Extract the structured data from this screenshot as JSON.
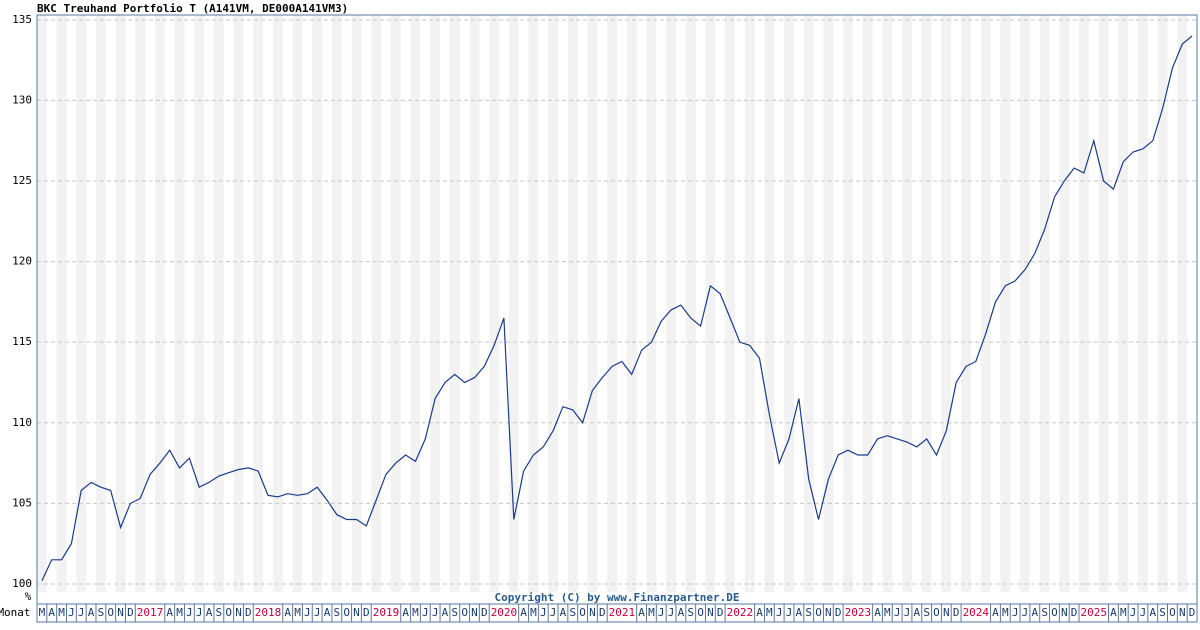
{
  "chart_data": {
    "type": "line",
    "title": "BKC Treuhand Portfolio T (A141VM, DE000A141VM3)",
    "copyright": "Copyright (C) by www.Finanzpartner.DE",
    "x_label": "Monat",
    "y_unit": "%",
    "categories": [
      "M",
      "A",
      "M",
      "J",
      "J",
      "A",
      "S",
      "O",
      "N",
      "D",
      "2017",
      null,
      null,
      "A",
      "M",
      "J",
      "J",
      "A",
      "S",
      "O",
      "N",
      "D",
      "2018",
      null,
      null,
      "A",
      "M",
      "J",
      "J",
      "A",
      "S",
      "O",
      "N",
      "D",
      "2019",
      null,
      null,
      "A",
      "M",
      "J",
      "J",
      "A",
      "S",
      "O",
      "N",
      "D",
      "2020",
      null,
      null,
      "A",
      "M",
      "J",
      "J",
      "A",
      "S",
      "O",
      "N",
      "D",
      "2021",
      null,
      null,
      "A",
      "M",
      "J",
      "J",
      "A",
      "S",
      "O",
      "N",
      "D",
      "2022",
      null,
      null,
      "A",
      "M",
      "J",
      "J",
      "A",
      "S",
      "O",
      "N",
      "D",
      "2023",
      null,
      null,
      "A",
      "M",
      "J",
      "J",
      "A",
      "S",
      "O",
      "N",
      "D",
      "2024",
      null,
      null,
      "A",
      "M",
      "J",
      "J",
      "A",
      "S",
      "O",
      "N",
      "D",
      "2025",
      null,
      null,
      "A",
      "M",
      "J",
      "J",
      "A",
      "S",
      "O",
      "N",
      "D"
    ],
    "series": [
      {
        "name": "BKC Treuhand Portfolio T",
        "color": "#1a3a8a",
        "values": [
          100.2,
          101.5,
          101.5,
          102.5,
          105.8,
          106.3,
          106.0,
          105.8,
          103.5,
          105.0,
          105.3,
          106.8,
          107.5,
          108.3,
          107.2,
          107.8,
          106.0,
          106.3,
          106.7,
          106.9,
          107.1,
          107.2,
          107.0,
          105.5,
          105.4,
          105.6,
          105.5,
          105.6,
          106.0,
          105.2,
          104.3,
          104.0,
          104.0,
          103.6,
          105.2,
          106.8,
          107.5,
          108.0,
          107.6,
          109.0,
          111.5,
          112.5,
          113.0,
          112.5,
          112.8,
          113.5,
          114.8,
          116.5,
          104.0,
          107.0,
          108.0,
          108.5,
          109.5,
          111.0,
          110.8,
          110.0,
          112.0,
          112.8,
          113.5,
          113.8,
          113.0,
          114.5,
          115.0,
          116.3,
          117.0,
          117.3,
          116.5,
          116.0,
          118.5,
          118.0,
          116.5,
          115.0,
          114.8,
          114.0,
          110.5,
          107.5,
          109.0,
          111.5,
          106.5,
          104.0,
          106.5,
          108.0,
          108.3,
          108.0,
          108.0,
          109.0,
          109.2,
          109.0,
          108.8,
          108.5,
          109.0,
          108.0,
          109.5,
          112.5,
          113.5,
          113.8,
          115.5,
          117.5,
          118.5,
          118.8,
          119.5,
          120.5,
          122.0,
          124.0,
          125.0,
          125.8,
          125.5,
          127.5,
          125.0,
          124.5,
          126.2,
          126.8,
          127.0,
          127.5,
          129.5,
          132.0,
          133.5,
          134.0
        ]
      }
    ],
    "ylim": [
      99.5,
      135.3
    ],
    "yticks": [
      100,
      105,
      110,
      115,
      120,
      125,
      130,
      135
    ],
    "grid": true,
    "year_color": "#c0003c",
    "month_color": "#1a3a6a"
  }
}
